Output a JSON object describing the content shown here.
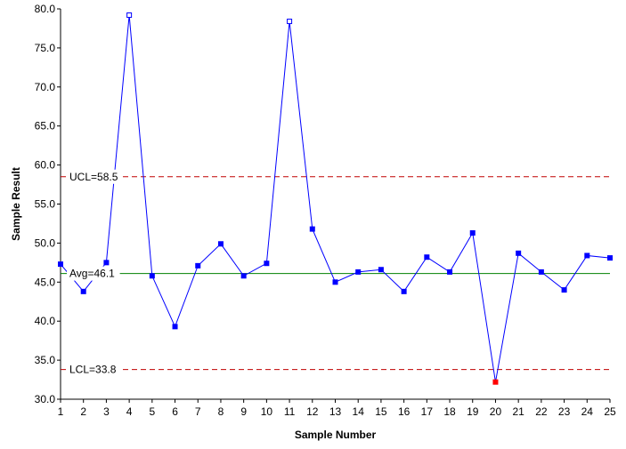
{
  "chart_data": {
    "type": "line",
    "xlabel": "Sample Number",
    "ylabel": "Sample Result",
    "ylim": [
      30,
      80
    ],
    "xlim": [
      1,
      25
    ],
    "yticks": [
      "30.0",
      "35.0",
      "40.0",
      "45.0",
      "50.0",
      "55.0",
      "60.0",
      "65.0",
      "70.0",
      "75.0",
      "80.0"
    ],
    "xticks": [
      "1",
      "2",
      "3",
      "4",
      "5",
      "6",
      "7",
      "8",
      "9",
      "10",
      "11",
      "12",
      "13",
      "14",
      "15",
      "16",
      "17",
      "18",
      "19",
      "20",
      "21",
      "22",
      "23",
      "24",
      "25"
    ],
    "grid": false,
    "series": [
      {
        "x": [
          1,
          2,
          3,
          4,
          5,
          6,
          7,
          8,
          9,
          10,
          11,
          12,
          13,
          14,
          15,
          16,
          17,
          18,
          19,
          20,
          21,
          22,
          23,
          24,
          25
        ],
        "values": [
          47.3,
          43.8,
          47.5,
          79.2,
          45.8,
          39.3,
          47.1,
          49.9,
          45.8,
          47.4,
          78.4,
          51.8,
          45.0,
          46.3,
          46.6,
          43.8,
          48.2,
          46.3,
          51.3,
          32.2,
          48.7,
          46.3,
          44.0,
          48.4,
          48.1
        ],
        "color": "#0000FF"
      }
    ],
    "point_markers": [
      "filled",
      "filled",
      "filled",
      "open",
      "filled",
      "filled",
      "filled",
      "filled",
      "filled",
      "filled",
      "open",
      "filled",
      "filled",
      "filled",
      "filled",
      "filled",
      "filled",
      "filled",
      "filled",
      "red",
      "filled",
      "filled",
      "filled",
      "filled",
      "filled"
    ],
    "control_limits": {
      "ucl": {
        "label": "UCL=58.5",
        "value": 58.5,
        "color": "#C00000",
        "style": "dashed"
      },
      "avg": {
        "label": "Avg=46.1",
        "value": 46.1,
        "color": "#008000",
        "style": "solid"
      },
      "lcl": {
        "label": "LCL=33.8",
        "value": 33.8,
        "color": "#C00000",
        "style": "dashed"
      }
    },
    "colors": {
      "marker_fill": "#0000FF",
      "marker_out_of_control_fill": "#FF0000",
      "marker_open_fill": "#FFFFFF"
    }
  }
}
